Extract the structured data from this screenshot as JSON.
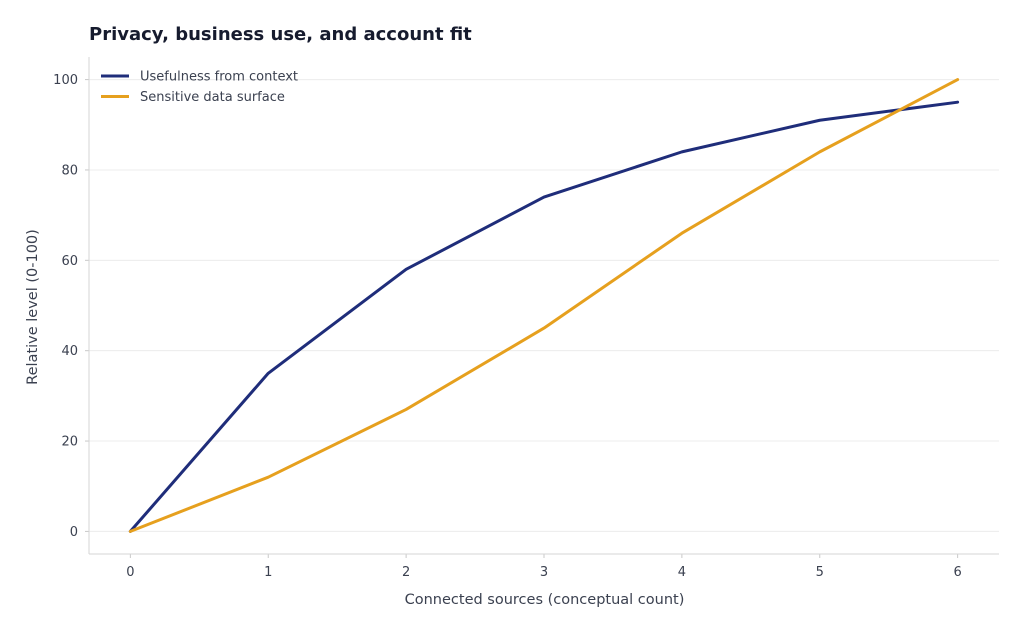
{
  "chart_data": {
    "type": "line",
    "title": "Privacy, business use, and account fit",
    "xlabel": "Connected sources (conceptual count)",
    "ylabel": "Relative level (0-100)",
    "x": [
      0,
      1,
      2,
      3,
      4,
      5,
      6
    ],
    "xlim": [
      -0.3,
      6.3
    ],
    "ylim": [
      -5,
      105
    ],
    "xticks": [
      0,
      1,
      2,
      3,
      4,
      5,
      6
    ],
    "yticks": [
      0,
      20,
      40,
      60,
      80,
      100
    ],
    "grid": "horizontal",
    "legend_position": "top-left",
    "series": [
      {
        "name": "Usefulness from context",
        "color": "#1f2d7a",
        "values": [
          0,
          35,
          58,
          74,
          84,
          91,
          95
        ]
      },
      {
        "name": "Sensitive data surface",
        "color": "#e6a01e",
        "values": [
          0,
          12,
          27,
          45,
          66,
          84,
          100
        ]
      }
    ]
  }
}
